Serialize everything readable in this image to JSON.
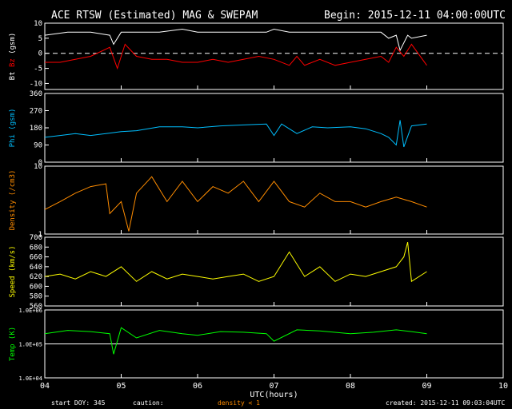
{
  "header": {
    "title": "ACE RTSW (Estimated) MAG & SWEPAM",
    "begin": "Begin: 2015-12-11 04:00:00UTC"
  },
  "footer": {
    "start_doy": "start DOY: 345",
    "caution": "caution:",
    "density_note": "density < 1",
    "created": "created: 2015-12-11 09:03:04UTC"
  },
  "colors": {
    "bt": "#ffffff",
    "bz": "#ff0000",
    "phi": "#00bfff",
    "density": "#ff8c00",
    "speed": "#ffff00",
    "temp": "#00ff00",
    "axes": "#ffffff"
  },
  "chart_data": {
    "type": "line",
    "x_axis": {
      "label": "UTC(hours)",
      "range": [
        4,
        10
      ],
      "tick_labels": [
        "04",
        "05",
        "06",
        "07",
        "08",
        "09",
        "10"
      ],
      "data_end": 9.0
    },
    "panels": [
      {
        "id": "mag",
        "ylabel_parts": [
          "Bt",
          "Bz",
          "(gsm)"
        ],
        "ylim": [
          -12,
          10
        ],
        "scale": "linear",
        "tick_values": [
          -10,
          -5,
          0,
          5,
          10
        ],
        "tick_labels": [
          "-10",
          "-5",
          "0",
          "5",
          "10"
        ],
        "dashed_zero": true,
        "series": [
          {
            "name": "Bt",
            "color_key": "bt",
            "x": [
              4.0,
              4.3,
              4.6,
              4.85,
              4.9,
              5.0,
              5.2,
              5.5,
              5.8,
              6.0,
              6.3,
              6.6,
              6.9,
              7.0,
              7.2,
              7.4,
              7.6,
              7.8,
              8.0,
              8.2,
              8.4,
              8.5,
              8.6,
              8.65,
              8.75,
              8.8,
              9.0
            ],
            "y": [
              6,
              7,
              7,
              6,
              3,
              7,
              7,
              7,
              8,
              7,
              7,
              7,
              7,
              8,
              7,
              7,
              7,
              7,
              7,
              7,
              7,
              5,
              6,
              1,
              6,
              5,
              6
            ]
          },
          {
            "name": "Bz",
            "color_key": "bz",
            "x": [
              4.0,
              4.2,
              4.4,
              4.6,
              4.85,
              4.95,
              5.05,
              5.2,
              5.4,
              5.6,
              5.8,
              6.0,
              6.2,
              6.4,
              6.6,
              6.8,
              7.0,
              7.2,
              7.3,
              7.4,
              7.6,
              7.8,
              8.0,
              8.2,
              8.4,
              8.5,
              8.6,
              8.7,
              8.8,
              9.0
            ],
            "y": [
              -3,
              -3,
              -2,
              -1,
              2,
              -5,
              3,
              -1,
              -2,
              -2,
              -3,
              -3,
              -2,
              -3,
              -2,
              -1,
              -2,
              -4,
              -1,
              -4,
              -2,
              -4,
              -3,
              -2,
              -1,
              -3,
              2,
              -1,
              3,
              -4
            ]
          }
        ]
      },
      {
        "id": "phi",
        "ylabel_parts": [
          "Phi (gsm)"
        ],
        "ylim": [
          0,
          360
        ],
        "scale": "linear",
        "tick_values": [
          0,
          90,
          180,
          270,
          360
        ],
        "tick_labels": [
          "0",
          "90",
          "180",
          "270",
          "360"
        ],
        "series": [
          {
            "name": "Phi",
            "color_key": "phi",
            "x": [
              4.0,
              4.2,
              4.4,
              4.6,
              4.8,
              5.0,
              5.2,
              5.5,
              5.8,
              6.0,
              6.3,
              6.6,
              6.9,
              7.0,
              7.1,
              7.3,
              7.5,
              7.7,
              8.0,
              8.2,
              8.4,
              8.5,
              8.6,
              8.65,
              8.7,
              8.8,
              9.0
            ],
            "y": [
              130,
              140,
              150,
              140,
              150,
              160,
              165,
              185,
              185,
              180,
              190,
              195,
              200,
              140,
              200,
              150,
              185,
              180,
              185,
              175,
              150,
              130,
              90,
              220,
              80,
              190,
              200
            ]
          }
        ]
      },
      {
        "id": "density",
        "ylabel_parts": [
          "Density (/cm3)"
        ],
        "ylim": [
          1,
          10
        ],
        "scale": "log",
        "tick_values": [
          1,
          10
        ],
        "tick_labels": [
          "1",
          "10"
        ],
        "series": [
          {
            "name": "Density",
            "color_key": "density",
            "x": [
              4.0,
              4.2,
              4.4,
              4.6,
              4.8,
              4.85,
              5.0,
              5.1,
              5.2,
              5.4,
              5.6,
              5.8,
              6.0,
              6.2,
              6.4,
              6.6,
              6.8,
              7.0,
              7.2,
              7.4,
              7.6,
              7.8,
              8.0,
              8.2,
              8.4,
              8.6,
              8.8,
              9.0
            ],
            "y": [
              2.3,
              3,
              4,
              5,
              5.5,
              2,
              3,
              1.1,
              4,
              7,
              3,
              6,
              3,
              5,
              4,
              6,
              3,
              6,
              3,
              2.5,
              4,
              3,
              3,
              2.5,
              3,
              3.5,
              3,
              2.5
            ]
          }
        ]
      },
      {
        "id": "speed",
        "ylabel_parts": [
          "Speed (km/s)"
        ],
        "ylim": [
          560,
          700
        ],
        "scale": "linear",
        "tick_values": [
          560,
          580,
          600,
          620,
          640,
          660,
          680,
          700
        ],
        "tick_labels": [
          "560",
          "580",
          "600",
          "620",
          "640",
          "660",
          "680",
          "700"
        ],
        "series": [
          {
            "name": "Speed",
            "color_key": "speed",
            "x": [
              4.0,
              4.2,
              4.4,
              4.6,
              4.8,
              5.0,
              5.2,
              5.4,
              5.6,
              5.8,
              6.0,
              6.2,
              6.4,
              6.6,
              6.8,
              7.0,
              7.2,
              7.4,
              7.6,
              7.8,
              8.0,
              8.2,
              8.4,
              8.6,
              8.7,
              8.75,
              8.8,
              9.0
            ],
            "y": [
              620,
              625,
              615,
              630,
              620,
              640,
              610,
              630,
              615,
              625,
              620,
              615,
              620,
              625,
              610,
              620,
              670,
              620,
              640,
              610,
              625,
              620,
              630,
              640,
              660,
              690,
              610,
              630
            ]
          }
        ]
      },
      {
        "id": "temp",
        "ylabel_parts": [
          "Temp (K)"
        ],
        "ylim": [
          10000,
          1000000
        ],
        "scale": "log",
        "tick_values": [
          10000,
          100000,
          1000000
        ],
        "tick_labels": [
          "1.0E+04",
          "1.0E+05",
          "1.0E+06"
        ],
        "ref_line": 100000,
        "series": [
          {
            "name": "Temp",
            "color_key": "temp",
            "x": [
              4.0,
              4.3,
              4.6,
              4.85,
              4.9,
              5.0,
              5.2,
              5.5,
              5.8,
              6.0,
              6.3,
              6.6,
              6.9,
              7.0,
              7.3,
              7.6,
              8.0,
              8.3,
              8.6,
              8.8,
              9.0
            ],
            "y": [
              200000,
              250000,
              230000,
              200000,
              50000,
              300000,
              150000,
              250000,
              200000,
              180000,
              230000,
              220000,
              200000,
              120000,
              260000,
              240000,
              200000,
              220000,
              260000,
              230000,
              200000
            ]
          }
        ]
      }
    ]
  }
}
